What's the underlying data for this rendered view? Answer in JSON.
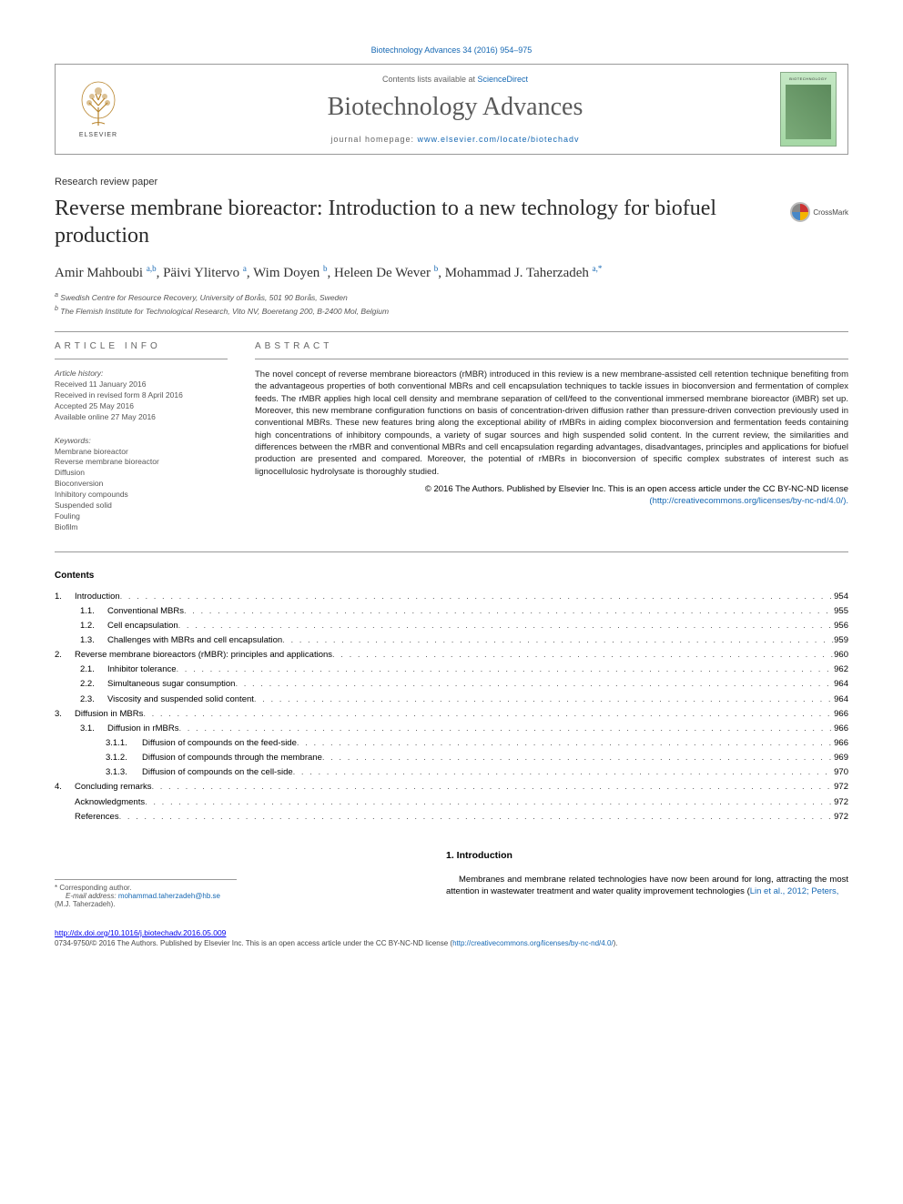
{
  "journal_ref": "Biotechnology Advances 34 (2016) 954–975",
  "header": {
    "contents_prefix": "Contents lists available at ",
    "contents_link": "ScienceDirect",
    "journal_name": "Biotechnology Advances",
    "homepage_prefix": "journal homepage: ",
    "homepage_link": "www.elsevier.com/locate/biotechadv",
    "publisher": "ELSEVIER",
    "cover_title": "BIOTECHNOLOGY"
  },
  "paper_type": "Research review paper",
  "title": "Reverse membrane bioreactor: Introduction to a new technology for biofuel production",
  "crossmark": "CrossMark",
  "authors_html": "Amir Mahboubi <sup>a,b</sup>, Päivi Ylitervo <sup>a</sup>, Wim Doyen <sup>b</sup>, Heleen De Wever <sup>b</sup>, Mohammad J. Taherzadeh <sup>a,*</sup>",
  "affiliations": [
    "a  Swedish Centre for Resource Recovery, University of Borås, 501 90 Borås, Sweden",
    "b  The Flemish Institute for Technological Research, Vito NV, Boeretang 200, B-2400 Mol, Belgium"
  ],
  "article_info": {
    "heading": "ARTICLE INFO",
    "history_label": "Article history:",
    "history": [
      "Received 11 January 2016",
      "Received in revised form 8 April 2016",
      "Accepted 25 May 2016",
      "Available online 27 May 2016"
    ],
    "keywords_label": "Keywords:",
    "keywords": [
      "Membrane bioreactor",
      "Reverse membrane bioreactor",
      "Diffusion",
      "Bioconversion",
      "Inhibitory compounds",
      "Suspended solid",
      "Fouling",
      "Biofilm"
    ]
  },
  "abstract": {
    "heading": "ABSTRACT",
    "text": "The novel concept of reverse membrane bioreactors (rMBR) introduced in this review is a new membrane-assisted cell retention technique benefiting from the advantageous properties of both conventional MBRs and cell encapsulation techniques to tackle issues in bioconversion and fermentation of complex feeds. The rMBR applies high local cell density and membrane separation of cell/feed to the conventional immersed membrane bioreactor (iMBR) set up. Moreover, this new membrane configuration functions on basis of concentration-driven diffusion rather than pressure-driven convection previously used in conventional MBRs. These new features bring along the exceptional ability of rMBRs in aiding complex bioconversion and fermentation feeds containing high concentrations of inhibitory compounds, a variety of sugar sources and high suspended solid content. In the current review, the similarities and differences between the rMBR and conventional MBRs and cell encapsulation regarding advantages, disadvantages, principles and applications for biofuel production are presented and compared. Moreover, the potential of rMBRs in bioconversion of specific complex substrates of interest such as lignocellulosic hydrolysate is thoroughly studied.",
    "copyright": "© 2016 The Authors. Published by Elsevier Inc. This is an open access article under the CC BY-NC-ND license",
    "license_link": "(http://creativecommons.org/licenses/by-nc-nd/4.0/).",
    "license_url": "http://creativecommons.org/licenses/by-nc-nd/4.0/"
  },
  "contents_heading": "Contents",
  "toc": [
    {
      "ind": 0,
      "num": "1.",
      "label": "Introduction",
      "page": "954"
    },
    {
      "ind": 1,
      "num": "1.1.",
      "label": "Conventional MBRs",
      "page": "955"
    },
    {
      "ind": 1,
      "num": "1.2.",
      "label": "Cell encapsulation",
      "page": "956"
    },
    {
      "ind": 1,
      "num": "1.3.",
      "label": "Challenges with MBRs and cell encapsulation",
      "page": "959"
    },
    {
      "ind": 0,
      "num": "2.",
      "label": "Reverse membrane bioreactors (rMBR): principles and applications",
      "page": "960"
    },
    {
      "ind": 1,
      "num": "2.1.",
      "label": "Inhibitor tolerance",
      "page": "962"
    },
    {
      "ind": 1,
      "num": "2.2.",
      "label": "Simultaneous sugar consumption",
      "page": "964"
    },
    {
      "ind": 1,
      "num": "2.3.",
      "label": "Viscosity and suspended solid content",
      "page": "964"
    },
    {
      "ind": 0,
      "num": "3.",
      "label": "Diffusion in MBRs",
      "page": "966"
    },
    {
      "ind": 1,
      "num": "3.1.",
      "label": "Diffusion in rMBRs",
      "page": "966"
    },
    {
      "ind": 2,
      "num": "3.1.1.",
      "label": "Diffusion of compounds on the feed-side",
      "page": "966"
    },
    {
      "ind": 2,
      "num": "3.1.2.",
      "label": "Diffusion of compounds through the membrane",
      "page": "969"
    },
    {
      "ind": 2,
      "num": "3.1.3.",
      "label": "Diffusion of compounds on the cell-side",
      "page": "970"
    },
    {
      "ind": 0,
      "num": "4.",
      "label": "Concluding remarks",
      "page": "972"
    },
    {
      "ind": 0,
      "num": "",
      "label": "Acknowledgments",
      "page": "972"
    },
    {
      "ind": 0,
      "num": "",
      "label": "References",
      "page": "972"
    }
  ],
  "intro": {
    "heading": "1. Introduction",
    "paragraph_pre": "Membranes and membrane related technologies have now been around for long, attracting the most attention in wastewater treatment and water quality improvement technologies (",
    "paragraph_link": "Lin et al., 2012; Peters,",
    "corresponding_label": "* Corresponding author.",
    "email_label": "E-mail address:",
    "email": "mohammad.taherzadeh@hb.se",
    "email_suffix": "(M.J. Taherzadeh)."
  },
  "footer": {
    "doi": "http://dx.doi.org/10.1016/j.biotechadv.2016.05.009",
    "copyright": "0734-9750/© 2016 The Authors. Published by Elsevier Inc. This is an open access article under the CC BY-NC-ND license (",
    "license_link": "http://creativecommons.org/licenses/by-nc-nd/4.0/",
    "copyright_suffix": ")."
  },
  "colors": {
    "link": "#1668b3",
    "text": "#000000",
    "muted": "#555555",
    "border": "#999999"
  }
}
